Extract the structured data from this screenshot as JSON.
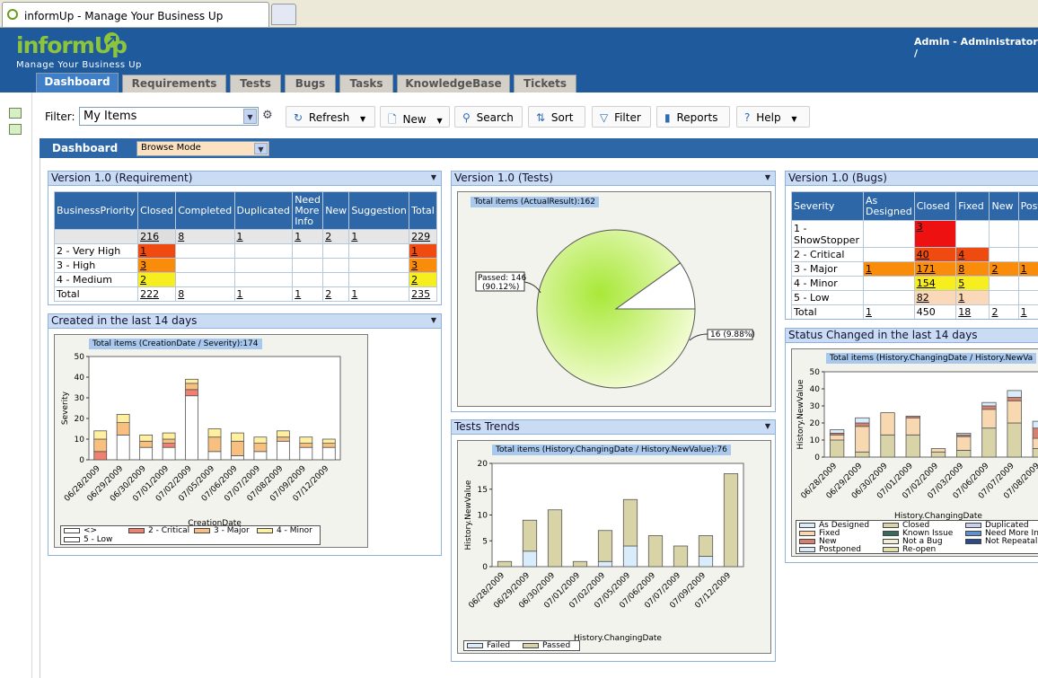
{
  "browser": {
    "tab_title": "informUp - Manage Your Business Up"
  },
  "app": {
    "logo": "informUp",
    "tagline": "Manage Your Business Up",
    "user": "Admin -   Administrator  /"
  },
  "nav": {
    "tabs": [
      "Dashboard",
      "Requirements",
      "Tests",
      "Bugs",
      "Tasks",
      "KnowledgeBase",
      "Tickets"
    ]
  },
  "toolbar": {
    "filter_label": "Filter:",
    "filter_value": "My Items",
    "refresh": "Refresh",
    "new": "New",
    "search": "Search",
    "sort": "Sort",
    "filter": "Filter",
    "reports": "Reports",
    "help": "Help"
  },
  "dashboard": {
    "title": "Dashboard",
    "mode": "Browse Mode"
  },
  "panels": {
    "req": {
      "title": "Version 1.0 (Requirement)",
      "headers": [
        "BusinessPriority",
        "Closed",
        "Completed",
        "Duplicated",
        "Need More Info",
        "New",
        "Suggestion",
        "Total"
      ],
      "rows": [
        [
          "",
          "216",
          "8",
          "1",
          "1",
          "2",
          "1",
          "229"
        ],
        [
          "2 - Very High",
          "1",
          "",
          "",
          "",
          "",
          "",
          "1"
        ],
        [
          "3 - High",
          "3",
          "",
          "",
          "",
          "",
          "",
          "3"
        ],
        [
          "4 - Medium",
          "2",
          "",
          "",
          "",
          "",
          "",
          "2"
        ],
        [
          "Total",
          "222",
          "8",
          "1",
          "1",
          "2",
          "1",
          "235"
        ]
      ]
    },
    "created": {
      "title": "Created in the last 14 days",
      "chart_title": "Total items (CreationDate / Severity):174",
      "xlabel": "CreationDate",
      "ylabel": "Severity",
      "legend": [
        "<>",
        "2 - Critical",
        "3 - Major",
        "4 - Minor",
        "5 - Low"
      ]
    },
    "tests": {
      "title": "Version 1.0 (Tests)",
      "chart_title": "Total items (ActualResult):162",
      "label_passed": "Passed: 146\n(90.12%)",
      "label_passed_1": "Passed: 146",
      "label_passed_2": "(90.12%)",
      "label_other": "16 (9.88%)"
    },
    "trends": {
      "title": "Tests Trends",
      "chart_title": "Total items (History.ChangingDate / History.NewValue):76",
      "xlabel": "History.ChangingDate",
      "ylabel": "History.NewValue",
      "legend": [
        "Failed",
        "Passed"
      ]
    },
    "bugs": {
      "title": "Version 1.0 (Bugs)",
      "headers": [
        "Severity",
        "As Designed",
        "Closed",
        "Fixed",
        "New",
        "Postpo"
      ],
      "rows": [
        [
          "1 - ShowStopper",
          "",
          "3",
          "",
          "",
          ""
        ],
        [
          "2 - Critical",
          "",
          "40",
          "4",
          "",
          ""
        ],
        [
          "3 - Major",
          "1",
          "171",
          "8",
          "2",
          "1"
        ],
        [
          "4 - Minor",
          "",
          "154",
          "5",
          "",
          ""
        ],
        [
          "5 - Low",
          "",
          "82",
          "1",
          "",
          ""
        ],
        [
          "Total",
          "1",
          "450",
          "18",
          "2",
          "1"
        ]
      ]
    },
    "status": {
      "title": "Status Changed in the last 14 days",
      "chart_title": "Total items (History.ChangingDate / History.NewVa",
      "xlabel": "History.ChangingDate",
      "ylabel": "History.NewValue",
      "legend": [
        "As Designed",
        "Closed",
        "Duplicated",
        "Fixed",
        "Known Issue",
        "Need More In",
        "New",
        "Not a Bug",
        "Not Repeatal",
        "Postponed",
        "Re-open"
      ]
    }
  },
  "chart_data": [
    {
      "type": "bar",
      "title": "Total items (CreationDate / Severity):174",
      "xlabel": "CreationDate",
      "ylabel": "Severity",
      "ylim": [
        0,
        50
      ],
      "categories": [
        "06/28/2009",
        "06/29/2009",
        "06/30/2009",
        "07/01/2009",
        "07/02/2009",
        "07/05/2009",
        "07/06/2009",
        "07/07/2009",
        "07/08/2009",
        "07/09/2009",
        "07/12/2009"
      ],
      "series": [
        {
          "name": "<>",
          "values": [
            0,
            12,
            6,
            6,
            31,
            4,
            2,
            4,
            9,
            6,
            6
          ]
        },
        {
          "name": "2 - Critical",
          "values": [
            4,
            0,
            0,
            2,
            3,
            0,
            0,
            0,
            0,
            0,
            0
          ]
        },
        {
          "name": "3 - Major",
          "values": [
            6,
            6,
            3,
            2,
            3,
            7,
            7,
            4,
            2,
            2,
            2
          ]
        },
        {
          "name": "4 - Minor",
          "values": [
            4,
            4,
            3,
            3,
            2,
            4,
            4,
            3,
            3,
            3,
            2
          ]
        },
        {
          "name": "5 - Low",
          "values": [
            0,
            0,
            0,
            0,
            0,
            0,
            0,
            0,
            0,
            0,
            0
          ]
        }
      ],
      "colors": [
        "#ffffff",
        "#f08070",
        "#f8c080",
        "#fff0a0",
        "#ffffff"
      ]
    },
    {
      "type": "pie",
      "title": "Total items (ActualResult):162",
      "labels": [
        "Passed",
        ""
      ],
      "values": [
        146,
        16
      ],
      "colors": [
        "#b8f060",
        "#ffffff"
      ]
    },
    {
      "type": "bar",
      "title": "Total items (History.ChangingDate / History.NewValue):76",
      "xlabel": "History.ChangingDate",
      "ylabel": "History.NewValue",
      "ylim": [
        0,
        20
      ],
      "categories": [
        "06/28/2009",
        "06/29/2009",
        "06/30/2009",
        "07/01/2009",
        "07/02/2009",
        "07/05/2009",
        "07/06/2009",
        "07/07/2009",
        "07/09/2009",
        "07/12/2009"
      ],
      "series": [
        {
          "name": "Failed",
          "values": [
            0,
            3,
            0,
            0,
            1,
            4,
            0,
            0,
            2,
            0
          ]
        },
        {
          "name": "Passed",
          "values": [
            1,
            6,
            11,
            1,
            6,
            9,
            6,
            4,
            4,
            18
          ]
        }
      ],
      "colors": [
        "#d8ecfc",
        "#d8d4a8"
      ]
    },
    {
      "type": "bar",
      "title": "Total items (History.ChangingDate / History.NewVa",
      "xlabel": "History.ChangingDate",
      "ylabel": "History.NewValue",
      "ylim": [
        0,
        50
      ],
      "categories": [
        "06/28/2009",
        "06/29/2009",
        "06/30/2009",
        "07/01/2009",
        "07/02/2009",
        "07/03/2009",
        "07/06/2009",
        "07/07/2009",
        "07/08/2009"
      ],
      "series": [
        {
          "name": "Closed",
          "values": [
            10,
            3,
            13,
            13,
            3,
            4,
            17,
            20,
            5
          ]
        },
        {
          "name": "Fixed",
          "values": [
            3,
            15,
            13,
            10,
            2,
            8,
            11,
            13,
            6
          ]
        },
        {
          "name": "New",
          "values": [
            1,
            2,
            0,
            1,
            0,
            1,
            2,
            2,
            6
          ]
        },
        {
          "name": "Postponed",
          "values": [
            2,
            3,
            0,
            0,
            0,
            1,
            2,
            4,
            4
          ]
        }
      ],
      "colors": [
        "#d8d4a8",
        "#f8d8b0",
        "#d88070",
        "#d8ecfc"
      ]
    }
  ]
}
